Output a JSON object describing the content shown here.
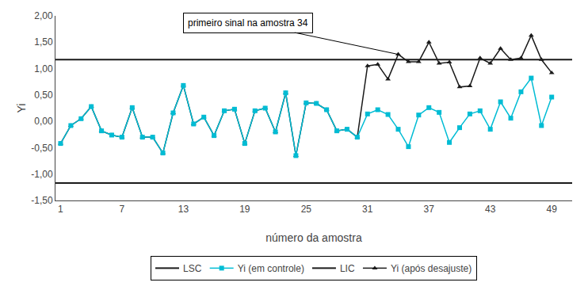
{
  "chart_data": {
    "type": "line",
    "xlabel": "número da amostra",
    "ylabel": "Yi",
    "x": [
      1,
      2,
      3,
      4,
      5,
      6,
      7,
      8,
      9,
      10,
      11,
      12,
      13,
      14,
      15,
      16,
      17,
      18,
      19,
      20,
      21,
      22,
      23,
      24,
      25,
      26,
      27,
      28,
      29,
      30,
      31,
      32,
      33,
      34,
      35,
      36,
      37,
      38,
      39,
      40,
      41,
      42,
      43,
      44,
      45,
      46,
      47,
      48,
      49
    ],
    "series": [
      {
        "name": "LSC",
        "type": "hline",
        "value": 1.17,
        "color": "#1a1a1a",
        "line_style": "solid"
      },
      {
        "name": "Yi (em controle)",
        "type": "line",
        "color": "#00bcd4",
        "marker": "square",
        "line_style": "solid",
        "values": [
          -0.42,
          -0.08,
          0.05,
          0.28,
          -0.18,
          -0.26,
          -0.3,
          0.26,
          -0.3,
          -0.3,
          -0.6,
          0.16,
          0.68,
          -0.05,
          0.08,
          -0.27,
          0.2,
          0.23,
          -0.42,
          0.2,
          0.25,
          -0.2,
          0.54,
          -0.65,
          0.35,
          0.34,
          0.22,
          -0.18,
          -0.15,
          -0.3,
          0.14,
          0.22,
          0.13,
          -0.15,
          -0.48,
          0.12,
          0.26,
          0.17,
          -0.4,
          -0.12,
          0.14,
          0.2,
          -0.15,
          0.37,
          0.06,
          0.56,
          0.82,
          -0.08,
          0.46
        ]
      },
      {
        "name": "LIC",
        "type": "hline",
        "value": -1.17,
        "color": "#1a1a1a",
        "line_style": "solid"
      },
      {
        "name": "Yi (após desajuste)",
        "type": "line",
        "color": "#1a1a1a",
        "marker": "triangle-up",
        "line_style": "solid",
        "values": [
          -0.42,
          -0.08,
          0.05,
          0.28,
          -0.18,
          -0.26,
          -0.3,
          0.26,
          -0.3,
          -0.3,
          -0.6,
          0.16,
          0.68,
          -0.05,
          0.08,
          -0.27,
          0.2,
          0.23,
          -0.42,
          0.2,
          0.25,
          -0.2,
          0.54,
          -0.65,
          0.35,
          0.34,
          0.22,
          -0.18,
          -0.15,
          -0.3,
          1.05,
          1.08,
          0.8,
          1.27,
          1.13,
          1.13,
          1.5,
          1.1,
          1.12,
          0.65,
          0.67,
          1.2,
          1.1,
          1.38,
          1.17,
          1.2,
          1.63,
          1.17,
          0.92
        ]
      }
    ],
    "annotations": [
      {
        "text": "primeiro sinal na amostra 34",
        "x": 34,
        "y": 1.27
      }
    ],
    "xlim": [
      0.5,
      51
    ],
    "xticks": [
      1,
      7,
      13,
      19,
      25,
      31,
      37,
      43,
      49
    ],
    "ylim": [
      -1.5,
      2.0
    ],
    "yticks": [
      {
        "value": -1.5,
        "label": "-1,50"
      },
      {
        "value": -1.0,
        "label": "-1,00"
      },
      {
        "value": -0.5,
        "label": "-0,50"
      },
      {
        "value": 0.0,
        "label": "0,00"
      },
      {
        "value": 0.5,
        "label": "0,50"
      },
      {
        "value": 1.0,
        "label": "1,00"
      },
      {
        "value": 1.5,
        "label": "1,50"
      },
      {
        "value": 2.0,
        "label": "2,00"
      }
    ],
    "grid": false,
    "legend": "bottom",
    "background": "#ffffff"
  }
}
